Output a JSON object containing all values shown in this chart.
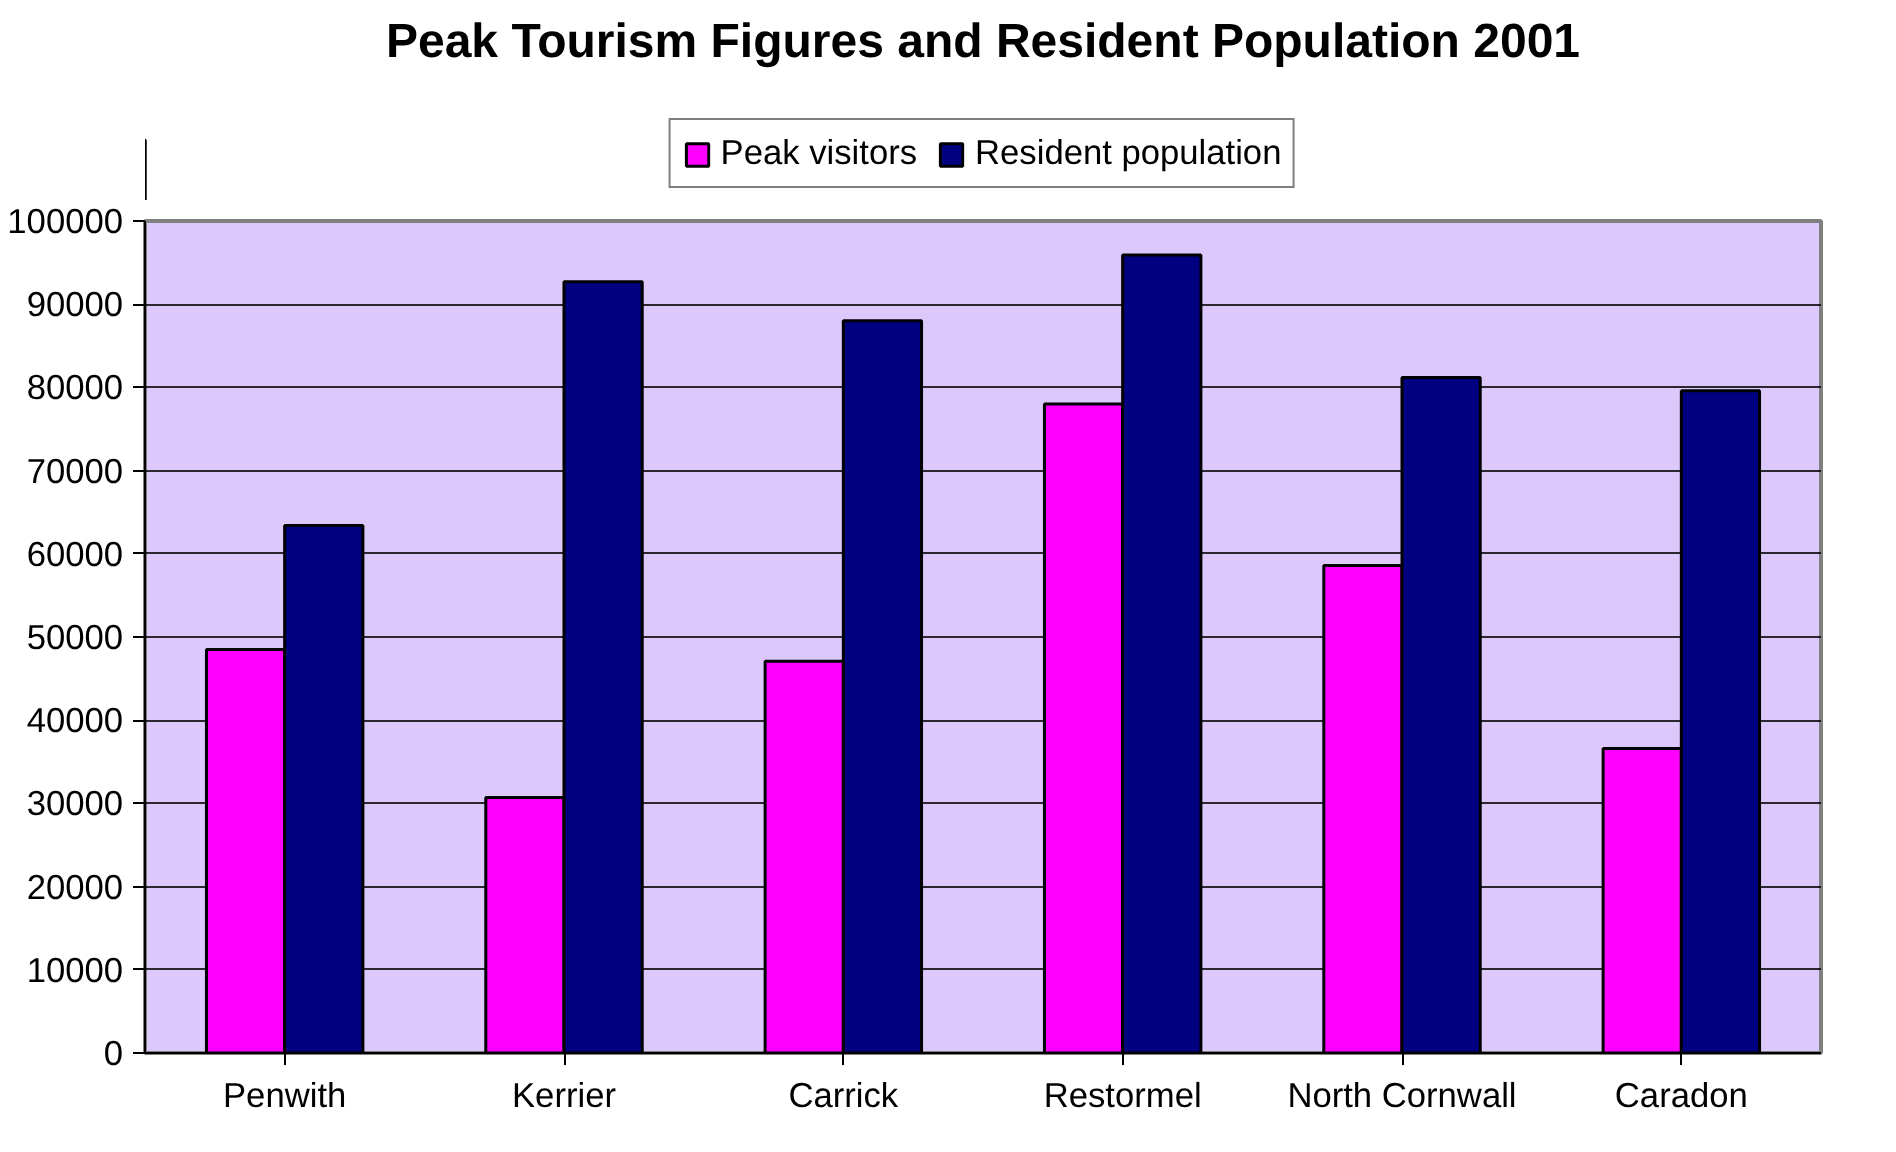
{
  "chart_data": {
    "type": "bar",
    "title": "Peak Tourism Figures and Resident Population 2001",
    "categories": [
      "Penwith",
      "Kerrier",
      "Carrick",
      "Restormel",
      "North Cornwall",
      "Caradon"
    ],
    "series": [
      {
        "name": "Peak visitors",
        "color": "#ff00ff",
        "values": [
          48500,
          30700,
          47100,
          78000,
          58600,
          36600
        ]
      },
      {
        "name": "Resident population",
        "color": "#000080",
        "values": [
          63400,
          92700,
          88000,
          95900,
          81200,
          79600
        ]
      }
    ],
    "ylim": [
      0,
      100000
    ],
    "yticks": [
      0,
      10000,
      20000,
      30000,
      40000,
      50000,
      60000,
      70000,
      80000,
      90000,
      100000
    ],
    "grid": "y",
    "legend": "top"
  }
}
